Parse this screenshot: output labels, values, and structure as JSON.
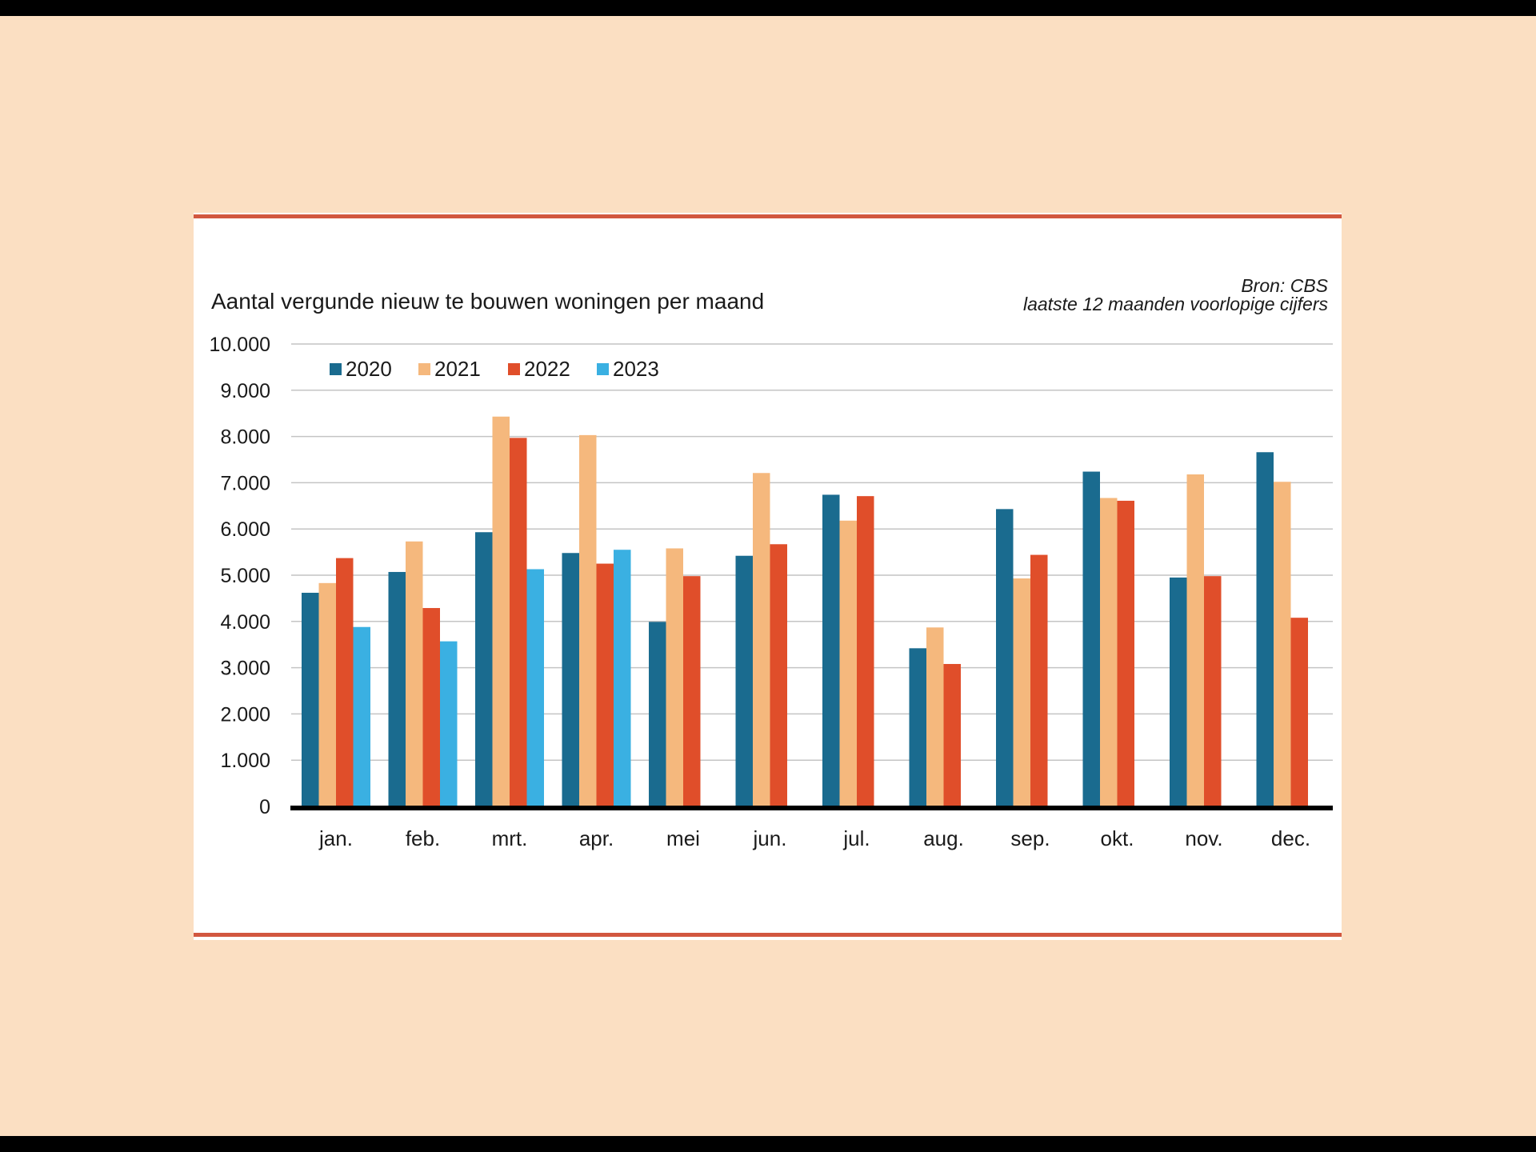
{
  "chart_data": {
    "type": "bar",
    "title": "Aantal vergunde nieuw te bouwen woningen per maand",
    "source": "Bron: CBS",
    "note": "laatste 12 maanden voorlopige cijfers",
    "categories": [
      "jan.",
      "feb.",
      "mrt.",
      "apr.",
      "mei",
      "jun.",
      "jul.",
      "aug.",
      "sep.",
      "okt.",
      "nov.",
      "dec."
    ],
    "series": [
      {
        "name": "2020",
        "color": "#1a6b8f",
        "values": [
          4620,
          5070,
          5930,
          5480,
          3990,
          5420,
          6740,
          3420,
          6430,
          7240,
          4950,
          7660
        ]
      },
      {
        "name": "2021",
        "color": "#f5b87d",
        "values": [
          4830,
          5730,
          8430,
          8030,
          5580,
          7210,
          6180,
          3870,
          4930,
          6670,
          7180,
          7020
        ]
      },
      {
        "name": "2022",
        "color": "#e04e2a",
        "values": [
          5370,
          4290,
          7970,
          5250,
          4980,
          5670,
          6710,
          3080,
          5440,
          6610,
          4980,
          4080
        ]
      },
      {
        "name": "2023",
        "color": "#3ab0e2",
        "values": [
          3880,
          3570,
          5130,
          5550,
          null,
          null,
          null,
          null,
          null,
          null,
          null,
          null
        ]
      }
    ],
    "yticks": [
      "0",
      "1.000",
      "2.000",
      "3.000",
      "4.000",
      "5.000",
      "6.000",
      "7.000",
      "8.000",
      "9.000",
      "10.000"
    ],
    "ylim": [
      0,
      10000
    ],
    "grid": true,
    "legend_position": "top-left"
  }
}
